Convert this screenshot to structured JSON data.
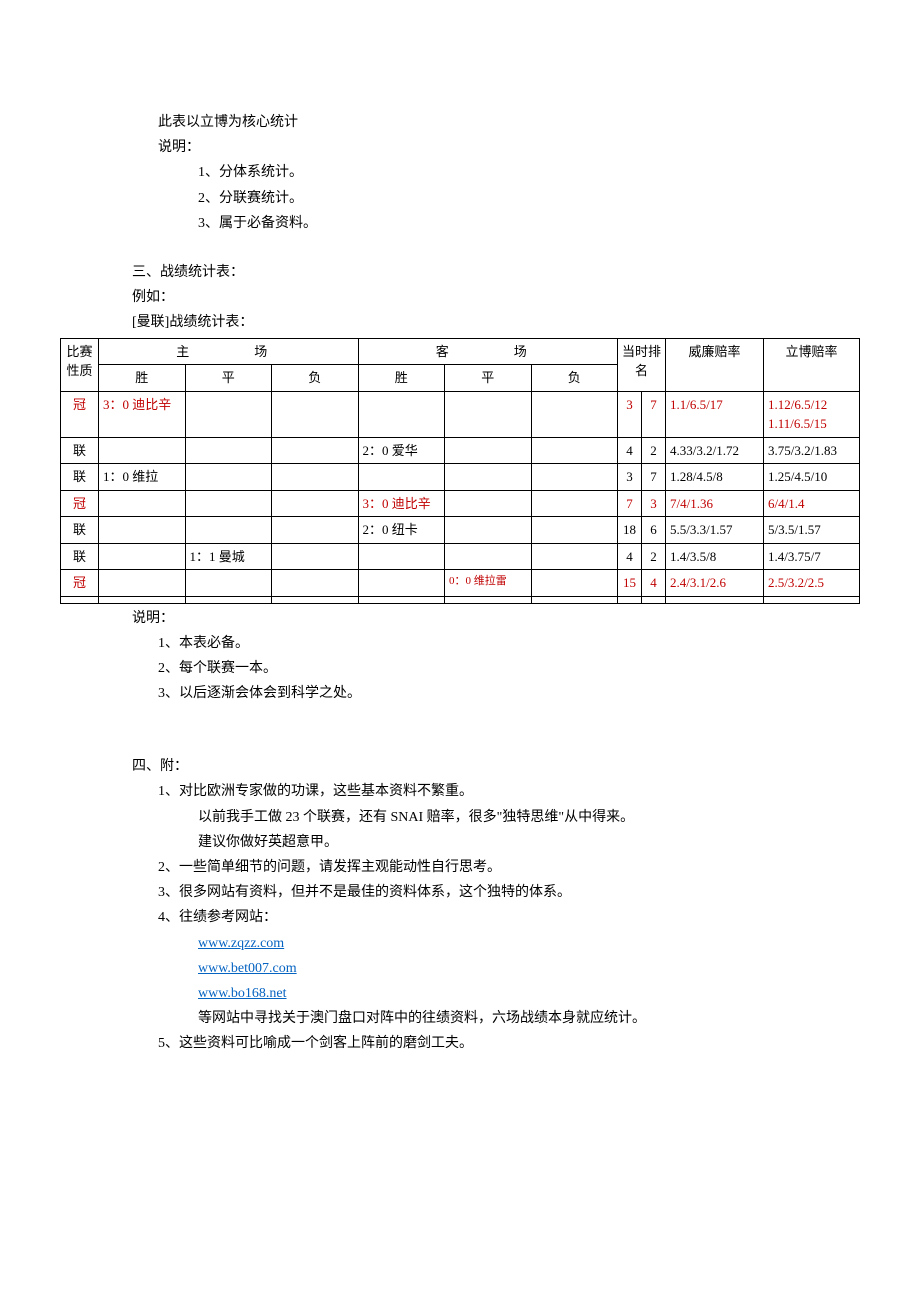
{
  "intro": {
    "line1": "此表以立博为核心统计",
    "line2": "说明：",
    "note1": "1、分体系统计。",
    "note2": "2、分联赛统计。",
    "note3": "3、属于必备资料。"
  },
  "section3": {
    "title": "三、战绩统计表：",
    "example": "例如：",
    "subtitle": "[曼联]战绩统计表："
  },
  "table": {
    "headers": {
      "col_type": "比赛性质",
      "col_home": "主　　场",
      "col_away": "客　　场",
      "col_time": "当时排名",
      "col_william": "威廉赔率",
      "col_libo": "立博赔率",
      "sub_w": "胜",
      "sub_d": "平",
      "sub_l": "负"
    },
    "rows": [
      {
        "type": "冠",
        "red": true,
        "hw": "3：0 迪比辛",
        "hd": "",
        "hl": "",
        "aw": "",
        "ad": "",
        "al": "",
        "ra": "3",
        "rb": "7",
        "ow": "1.1/6.5/17",
        "ol": "1.12/6.5/12\n1.11/6.5/15"
      },
      {
        "type": "联",
        "red": false,
        "hw": "",
        "hd": "",
        "hl": "",
        "aw": "2：0 爱华",
        "ad": "",
        "al": "",
        "ra": "4",
        "rb": "2",
        "ow": "4.33/3.2/1.72",
        "ol": "3.75/3.2/1.83"
      },
      {
        "type": "联",
        "red": false,
        "hw": "1：0 维拉",
        "hd": "",
        "hl": "",
        "aw": "",
        "ad": "",
        "al": "",
        "ra": "3",
        "rb": "7",
        "ow": "1.28/4.5/8",
        "ol": "1.25/4.5/10"
      },
      {
        "type": "冠",
        "red": true,
        "hw": "",
        "hd": "",
        "hl": "",
        "aw": "3：0 迪比辛",
        "ad": "",
        "al": "",
        "ra": "7",
        "rb": "3",
        "ow": "7/4/1.36",
        "ol": "6/4/1.4"
      },
      {
        "type": "联",
        "red": false,
        "hw": "",
        "hd": "",
        "hl": "",
        "aw": "2：0 纽卡",
        "ad": "",
        "al": "",
        "ra": "18",
        "rb": "6",
        "ow": "5.5/3.3/1.57",
        "ol": "5/3.5/1.57"
      },
      {
        "type": "联",
        "red": false,
        "hw": "",
        "hd": "1：1 曼城",
        "hl": "",
        "aw": "",
        "ad": "",
        "al": "",
        "ra": "4",
        "rb": "2",
        "ow": "1.4/3.5/8",
        "ol": "1.4/3.75/7"
      },
      {
        "type": "冠",
        "red": true,
        "hw": "",
        "hd": "",
        "hl": "",
        "aw": "",
        "ad": "0：0 维拉雷",
        "al": "",
        "ra": "15",
        "rb": "4",
        "ow": "2.4/3.1/2.6",
        "ol": "2.5/3.2/2.5",
        "small_ad": true
      },
      {
        "type": "",
        "red": false,
        "hw": "",
        "hd": "",
        "hl": "",
        "aw": "",
        "ad": "",
        "al": "",
        "ra": "",
        "rb": "",
        "ow": "",
        "ol": ""
      }
    ]
  },
  "notes2": {
    "title": "说明：",
    "n1": "1、本表必备。",
    "n2": "2、每个联赛一本。",
    "n3": "3、以后逐渐会体会到科学之处。"
  },
  "section4": {
    "title": "四、附：",
    "p1a": "1、对比欧洲专家做的功课，这些基本资料不繁重。",
    "p1b": "以前我手工做 23 个联赛，还有 SNAI 赔率，很多\"独特思维\"从中得来。",
    "p1c": "建议你做好英超意甲。",
    "p2": "2、一些简单细节的问题，请发挥主观能动性自行思考。",
    "p3": "3、很多网站有资料，但并不是最佳的资料体系，这个独特的体系。",
    "p4": "4、往绩参考网站：",
    "link1": "www.zqzz.com",
    "link2": "www.bet007.com",
    "link3": "www.bo168.net",
    "p4b": "等网站中寻找关于澳门盘口对阵中的往绩资料，六场战绩本身就应统计。",
    "p5": "5、这些资料可比喻成一个剑客上阵前的磨剑工夫。"
  }
}
